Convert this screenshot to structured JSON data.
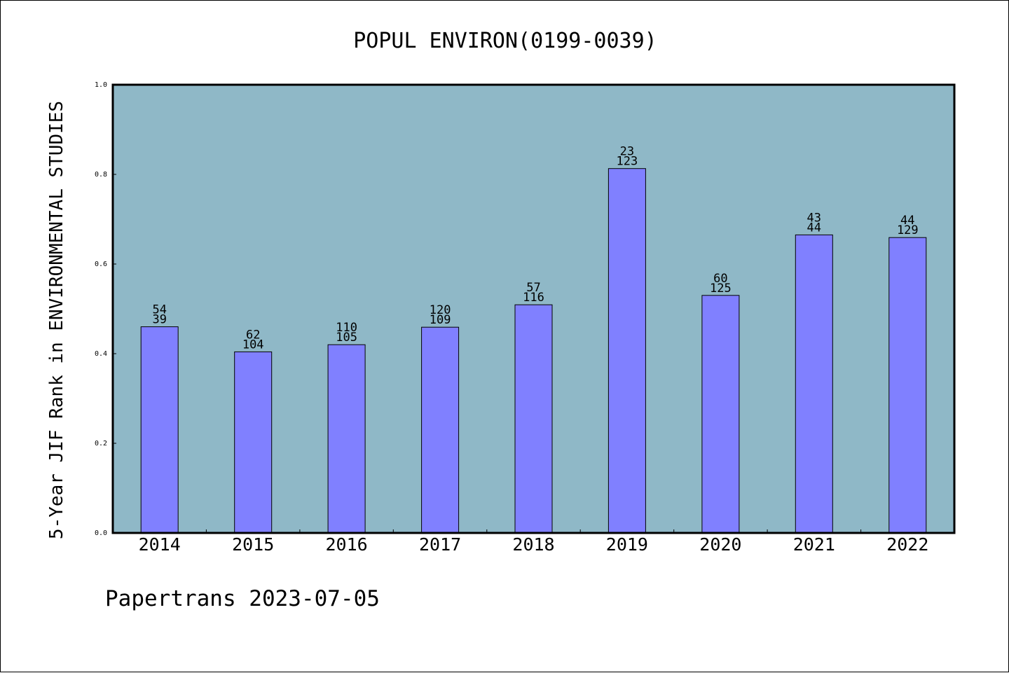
{
  "chart_data": {
    "type": "bar",
    "title": "POPUL ENVIRON(0199-0039)",
    "xlabel": "",
    "ylabel": "5-Year JIF Rank in ENVIRONMENTAL STUDIES",
    "categories": [
      "2014",
      "2015",
      "2016",
      "2017",
      "2018",
      "2019",
      "2020",
      "2021",
      "2022"
    ],
    "values": [
      0.46,
      0.404,
      0.42,
      0.459,
      0.509,
      0.813,
      0.53,
      0.665,
      0.659
    ],
    "bar_labels_top": [
      "54",
      "62",
      "110",
      "120",
      "57",
      "23",
      "60",
      "43",
      "44"
    ],
    "bar_labels_bottom": [
      "39",
      "104",
      "105",
      "109",
      "116",
      "123",
      "125",
      "44",
      "129"
    ],
    "ylim": [
      0,
      1.0
    ],
    "yticks": [
      "0.0",
      "0.2",
      "0.4",
      "0.6",
      "0.8",
      "1.0"
    ],
    "grid": false,
    "legend": "none",
    "colors": {
      "plot_background": "#8fb8c7",
      "bar_fill": "#8080ff",
      "bar_edge": "#000000"
    }
  },
  "footer": {
    "text": "Papertrans 2023-07-05"
  }
}
